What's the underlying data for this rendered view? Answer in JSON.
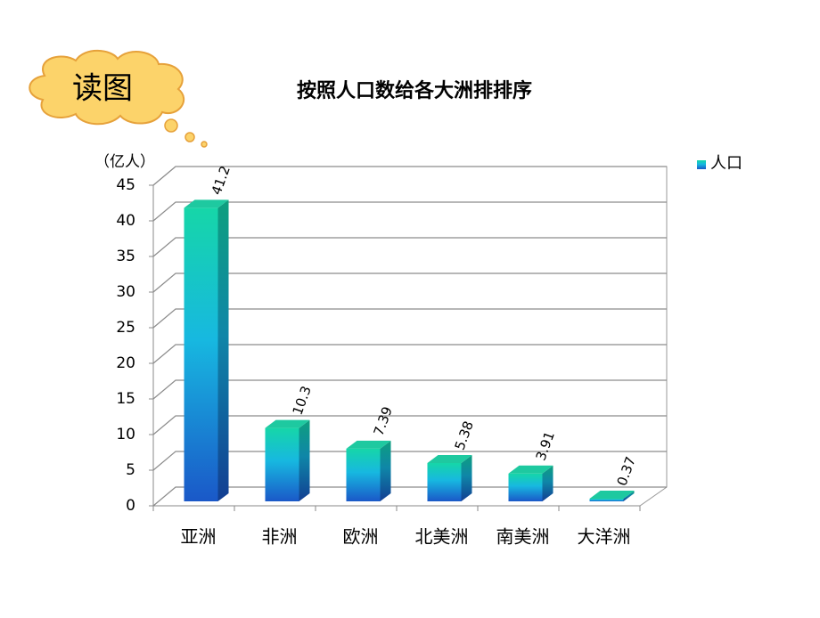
{
  "chart_data": {
    "type": "bar3d",
    "callout": "读图",
    "title": "按照人口数给各大洲排排序",
    "y_label": "（亿人）",
    "categories": [
      "亚洲",
      "非洲",
      "欧洲",
      "北美洲",
      "南美洲",
      "大洋洲"
    ],
    "series": [
      {
        "name": "人口",
        "color": "#1a8fd8",
        "values": [
          41.2,
          10.3,
          7.39,
          5.38,
          3.91,
          0.37
        ]
      }
    ],
    "ylim": [
      0,
      45
    ],
    "yticks": [
      0,
      5,
      10,
      15,
      20,
      25,
      30,
      35,
      40,
      45
    ],
    "grid": true,
    "legend": "top-right"
  }
}
